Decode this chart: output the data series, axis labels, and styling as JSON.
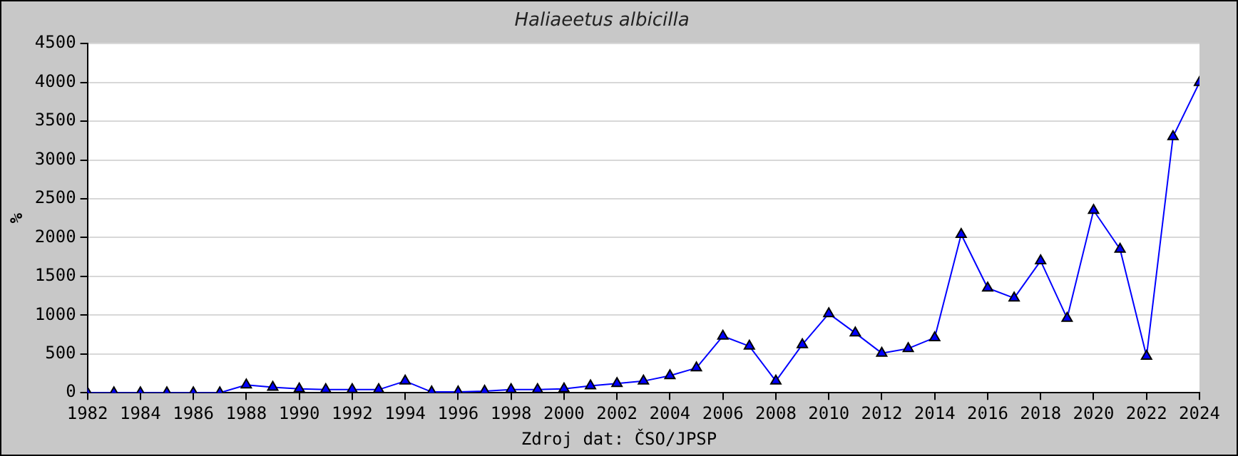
{
  "chart_data": {
    "type": "line",
    "title": "Haliaeetus albicilla",
    "ylabel": "%",
    "annotations": [
      "Zdroj dat: ČSO/JPSP"
    ],
    "x": [
      1982,
      1983,
      1984,
      1985,
      1986,
      1987,
      1988,
      1989,
      1990,
      1991,
      1992,
      1993,
      1994,
      1995,
      1996,
      1997,
      1998,
      1999,
      2000,
      2001,
      2002,
      2003,
      2004,
      2005,
      2006,
      2007,
      2008,
      2009,
      2010,
      2011,
      2012,
      2013,
      2014,
      2015,
      2016,
      2017,
      2018,
      2019,
      2020,
      2021,
      2022,
      2023,
      2024
    ],
    "series": [
      {
        "color": "#0000ff",
        "values": [
          0,
          0,
          0,
          0,
          0,
          0,
          100,
          70,
          50,
          40,
          40,
          40,
          150,
          10,
          10,
          20,
          40,
          40,
          50,
          90,
          120,
          150,
          220,
          320,
          730,
          600,
          150,
          620,
          1020,
          770,
          510,
          570,
          710,
          2040,
          1350,
          1220,
          1700,
          960,
          2350,
          1850,
          470,
          3300,
          4000
        ]
      }
    ],
    "xlim": [
      1982,
      2024
    ],
    "xticks": [
      1982,
      1984,
      1986,
      1988,
      1990,
      1992,
      1994,
      1996,
      1998,
      2000,
      2002,
      2004,
      2006,
      2008,
      2010,
      2012,
      2014,
      2016,
      2018,
      2020,
      2022,
      2024
    ],
    "ylim": [
      0,
      4500
    ],
    "yticks": [
      0,
      500,
      1000,
      1500,
      2000,
      2500,
      3000,
      3500,
      4000,
      4500
    ],
    "grid": "y",
    "legend": false,
    "marker": "triangle",
    "line_style": "solid"
  }
}
